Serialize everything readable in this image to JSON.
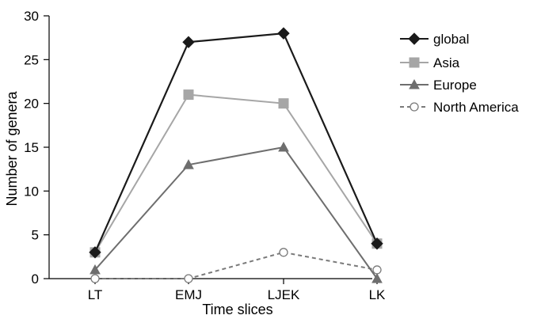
{
  "chart_data": {
    "type": "line",
    "title": "",
    "xlabel": "Time slices",
    "ylabel": "Number of genera",
    "categories": [
      "LT",
      "EMJ",
      "LJEK",
      "LK"
    ],
    "ylim": [
      0,
      30
    ],
    "yticks": [
      0,
      5,
      10,
      15,
      20,
      25,
      30
    ],
    "grid": false,
    "legend_position": "top-right",
    "series": [
      {
        "name": "global",
        "values": [
          3,
          27,
          28,
          4
        ],
        "color": "#1a1a1a",
        "marker": "diamond",
        "dash": "solid",
        "marker_fill": "#1a1a1a"
      },
      {
        "name": "Asia",
        "values": [
          3,
          21,
          20,
          4
        ],
        "color": "#a6a6a6",
        "marker": "square",
        "dash": "solid",
        "marker_fill": "#a6a6a6"
      },
      {
        "name": "Europe",
        "values": [
          1,
          13,
          15,
          0
        ],
        "color": "#6e6e6e",
        "marker": "triangle",
        "dash": "solid",
        "marker_fill": "#6e6e6e"
      },
      {
        "name": "North America",
        "values": [
          0,
          0,
          3,
          1
        ],
        "color": "#7a7a7a",
        "marker": "circle",
        "dash": "dashed",
        "marker_fill": "#ffffff"
      }
    ]
  }
}
